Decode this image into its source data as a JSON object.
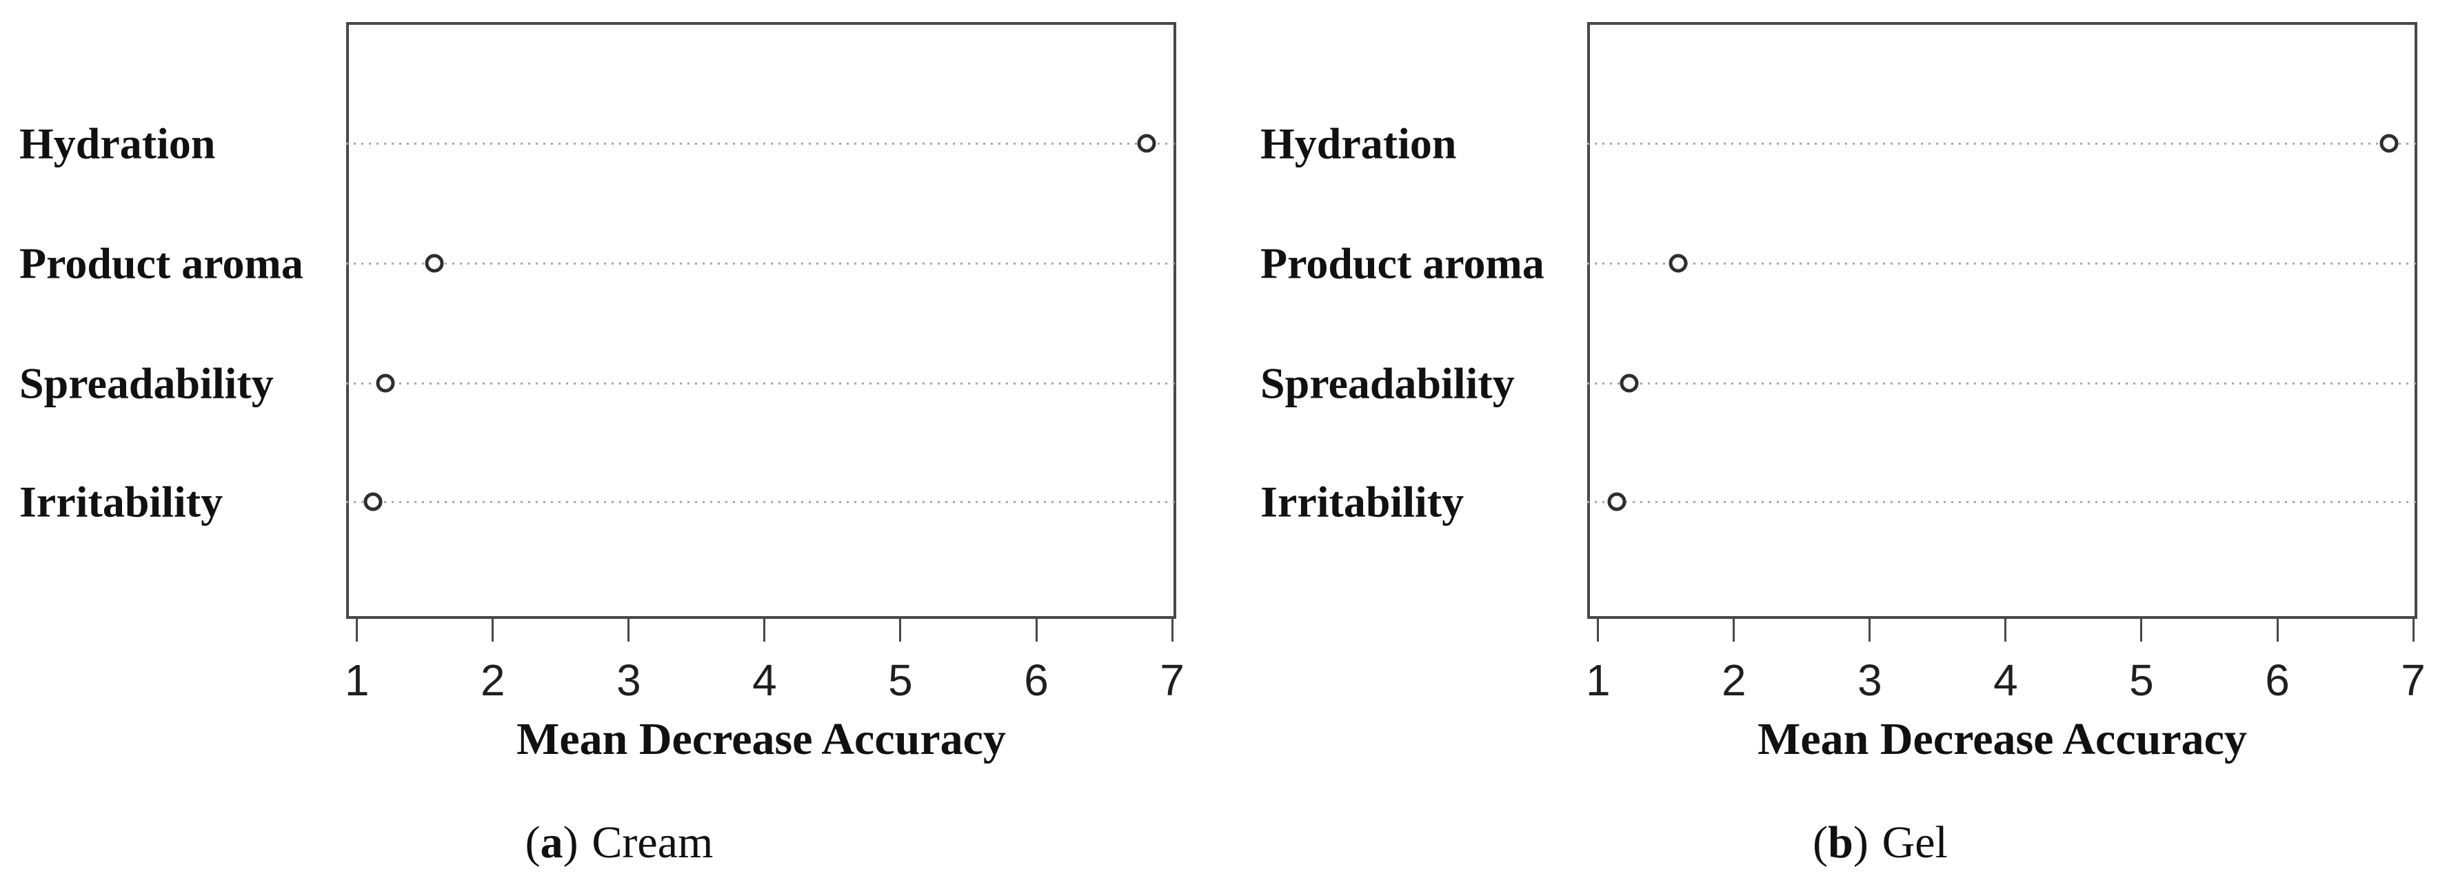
{
  "colors": {
    "background": "#ffffff",
    "frame": "#484848",
    "grid_dots": "#a8a8a8",
    "marker_ring": "#2e2e2e",
    "text": "#111111"
  },
  "chart_data": [
    {
      "type": "scatter",
      "variant": "horizontal-dot-plot",
      "panel_label": "a",
      "panel_title": "Cream",
      "caption_open": "(",
      "caption_close": ")",
      "categories": [
        "Hydration",
        "Product aroma",
        "Spreadability",
        "Irritability"
      ],
      "values": [
        6.81,
        1.57,
        1.21,
        1.12
      ],
      "xlabel": "Mean Decrease Accuracy",
      "xticks": [
        1,
        2,
        3,
        4,
        5,
        6,
        7
      ],
      "xlim": [
        0.92,
        7.03
      ],
      "grid": "dotted horizontal line per category",
      "marker": "open-circle",
      "legend": "none"
    },
    {
      "type": "scatter",
      "variant": "horizontal-dot-plot",
      "panel_label": "b",
      "panel_title": "Gel",
      "caption_open": "(",
      "caption_close": ")",
      "categories": [
        "Hydration",
        "Product aroma",
        "Spreadability",
        "Irritability"
      ],
      "values": [
        6.82,
        1.59,
        1.23,
        1.14
      ],
      "xlabel": "Mean Decrease Accuracy",
      "xticks": [
        1,
        2,
        3,
        4,
        5,
        6,
        7
      ],
      "xlim": [
        0.92,
        7.03
      ],
      "grid": "dotted horizontal line per category",
      "marker": "open-circle",
      "legend": "none"
    }
  ]
}
